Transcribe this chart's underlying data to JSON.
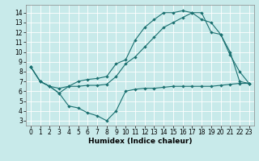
{
  "xlabel": "Humidex (Indice chaleur)",
  "background_color": "#c8eaea",
  "grid_color": "#ffffff",
  "line_color": "#1a7070",
  "xlim": [
    -0.5,
    23.5
  ],
  "ylim": [
    2.5,
    14.8
  ],
  "xticks": [
    0,
    1,
    2,
    3,
    4,
    5,
    6,
    7,
    8,
    9,
    10,
    11,
    12,
    13,
    14,
    15,
    16,
    17,
    18,
    19,
    20,
    21,
    22,
    23
  ],
  "yticks": [
    3,
    4,
    5,
    6,
    7,
    8,
    9,
    10,
    11,
    12,
    13,
    14
  ],
  "line1_x": [
    0,
    1,
    2,
    3,
    4,
    5,
    6,
    7,
    8,
    9,
    10,
    11,
    12,
    13,
    14,
    15,
    16,
    17,
    18,
    19,
    20,
    21,
    22,
    23
  ],
  "line1_y": [
    8.5,
    7.0,
    6.5,
    5.8,
    4.5,
    4.3,
    3.8,
    3.5,
    3.0,
    4.0,
    6.0,
    6.2,
    6.3,
    6.3,
    6.4,
    6.5,
    6.5,
    6.5,
    6.5,
    6.5,
    6.6,
    6.7,
    6.8,
    6.8
  ],
  "line2_x": [
    0,
    1,
    2,
    3,
    4,
    5,
    6,
    7,
    8,
    9,
    10,
    11,
    12,
    13,
    14,
    15,
    16,
    17,
    18,
    19,
    20,
    21,
    22,
    23
  ],
  "line2_y": [
    8.5,
    7.0,
    6.5,
    5.8,
    6.5,
    7.0,
    7.2,
    7.3,
    7.5,
    8.8,
    9.2,
    11.2,
    12.5,
    13.3,
    14.0,
    14.0,
    14.2,
    14.0,
    13.3,
    13.0,
    11.8,
    9.7,
    8.0,
    6.8
  ],
  "line3_x": [
    0,
    1,
    2,
    3,
    4,
    5,
    6,
    7,
    8,
    9,
    10,
    11,
    12,
    13,
    14,
    15,
    16,
    17,
    18,
    19,
    20,
    21,
    22,
    23
  ],
  "line3_y": [
    8.5,
    7.0,
    6.5,
    6.3,
    6.5,
    6.5,
    6.6,
    6.6,
    6.7,
    7.5,
    8.8,
    9.5,
    10.5,
    11.5,
    12.5,
    13.0,
    13.5,
    14.0,
    14.0,
    12.0,
    11.8,
    10.0,
    7.0,
    6.8
  ],
  "marker_size": 2.2,
  "line_width": 0.8,
  "tick_labelsize": 5.5,
  "xlabel_fontsize": 6.5
}
